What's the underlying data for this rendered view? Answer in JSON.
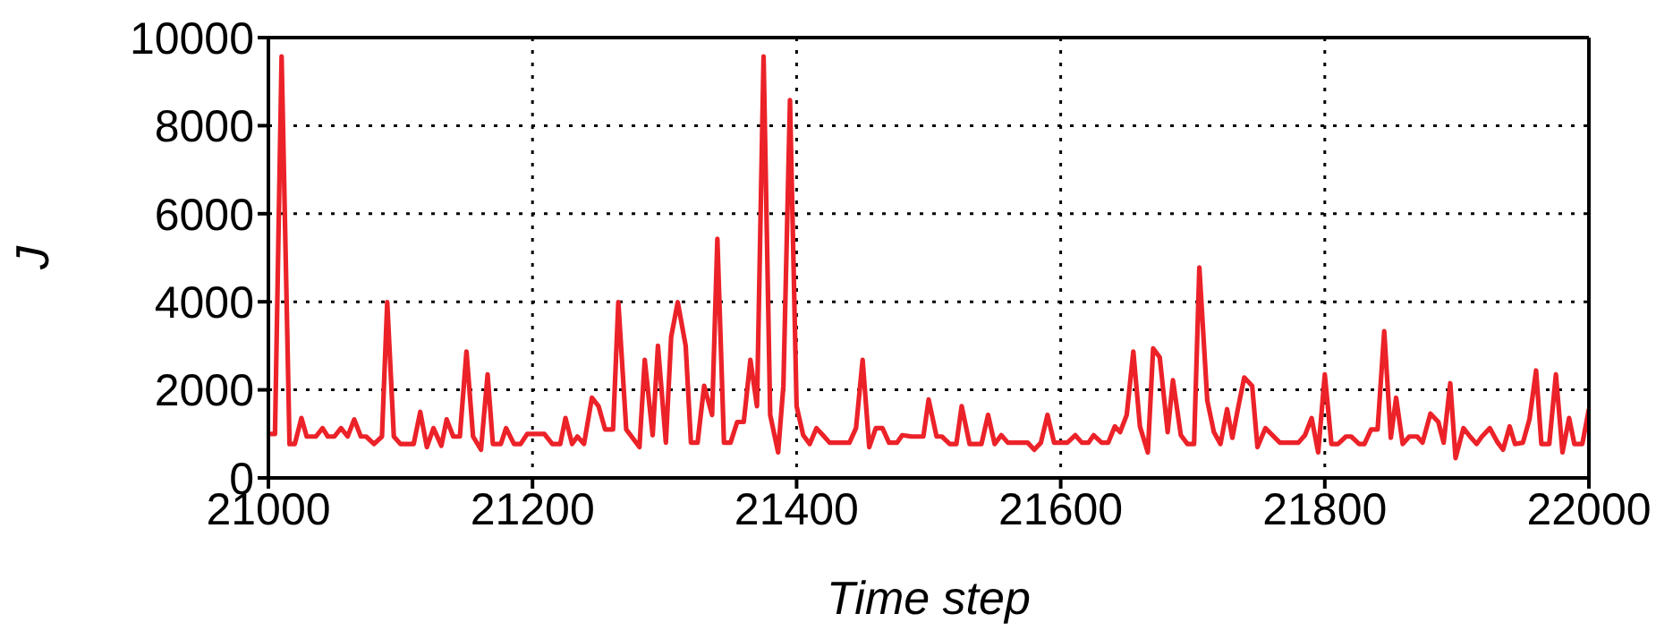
{
  "chart_data": {
    "type": "line",
    "xlabel": "Time step",
    "ylabel": "J",
    "xlim": [
      21000,
      22000
    ],
    "xticks": [
      21000,
      21200,
      21400,
      21600,
      21800,
      22000
    ],
    "ylim": [
      0,
      10000
    ],
    "yticks": [
      0,
      2000,
      4000,
      6000,
      8000,
      10000
    ],
    "grid": true,
    "legend": false,
    "marker": "none",
    "line_style": "solid",
    "series": [
      {
        "color": "#ec2229",
        "x": [
          21000,
          21005,
          21010,
          21016,
          21020,
          21025,
          21029,
          21036,
          21041,
          21045,
          21050,
          21055,
          21060,
          21065,
          21070,
          21074,
          21080,
          21086,
          21090,
          21095,
          21100,
          21110,
          21115,
          21120,
          21125,
          21131,
          21135,
          21140,
          21145,
          21150,
          21155,
          21161,
          21166,
          21170,
          21176,
          21180,
          21186,
          21191,
          21196,
          21209,
          21215,
          21221,
          21225,
          21230,
          21234,
          21239,
          21245,
          21250,
          21255,
          21261,
          21265,
          21271,
          21281,
          21285,
          21291,
          21295,
          21301,
          21305,
          21310,
          21316,
          21320,
          21325,
          21330,
          21336,
          21340,
          21345,
          21350,
          21355,
          21360,
          21365,
          21370,
          21375,
          21380,
          21386,
          21390,
          21395,
          21400,
          21405,
          21410,
          21415,
          21420,
          21425,
          21440,
          21445,
          21450,
          21455,
          21460,
          21465,
          21470,
          21476,
          21480,
          21487,
          21496,
          21500,
          21506,
          21510,
          21516,
          21521,
          21525,
          21531,
          21540,
          21545,
          21550,
          21555,
          21560,
          21575,
          21580,
          21585,
          21590,
          21595,
          21605,
          21611,
          21616,
          21621,
          21625,
          21631,
          21636,
          21641,
          21645,
          21650,
          21655,
          21660,
          21666,
          21670,
          21675,
          21681,
          21685,
          21691,
          21696,
          21701,
          21705,
          21711,
          21716,
          21721,
          21726,
          21730,
          21735,
          21739,
          21745,
          21749,
          21755,
          21766,
          21780,
          21785,
          21790,
          21795,
          21800,
          21805,
          21810,
          21816,
          21820,
          21826,
          21830,
          21835,
          21840,
          21845,
          21850,
          21854,
          21859,
          21864,
          21870,
          21874,
          21880,
          21886,
          21890,
          21895,
          21899,
          21905,
          21910,
          21915,
          21919,
          21925,
          21931,
          21935,
          21940,
          21944,
          21950,
          21955,
          21960,
          21964,
          21970,
          21975,
          21980,
          21985,
          21989,
          21995,
          22000
        ],
        "values": [
          1000,
          1000,
          9570,
          770,
          770,
          1360,
          940,
          940,
          1130,
          940,
          940,
          1130,
          940,
          1330,
          940,
          940,
          770,
          940,
          3990,
          940,
          770,
          770,
          1500,
          700,
          1130,
          730,
          1330,
          940,
          940,
          2870,
          940,
          640,
          2350,
          770,
          770,
          1130,
          770,
          770,
          1000,
          1000,
          770,
          770,
          1360,
          770,
          940,
          770,
          1820,
          1630,
          1100,
          1100,
          3990,
          1100,
          700,
          2680,
          970,
          3000,
          800,
          3200,
          3990,
          3000,
          800,
          800,
          2090,
          1430,
          5430,
          800,
          800,
          1270,
          1270,
          2680,
          1630,
          9570,
          1430,
          580,
          2090,
          8580,
          1630,
          970,
          770,
          1130,
          970,
          800,
          800,
          1130,
          2680,
          700,
          1130,
          1130,
          800,
          800,
          970,
          940,
          940,
          1780,
          940,
          940,
          770,
          770,
          1630,
          770,
          770,
          1430,
          770,
          970,
          800,
          800,
          640,
          800,
          1430,
          800,
          800,
          970,
          800,
          800,
          970,
          800,
          800,
          1170,
          1040,
          1430,
          2870,
          1170,
          580,
          2940,
          2740,
          1040,
          2220,
          970,
          770,
          770,
          4780,
          1760,
          1040,
          770,
          1560,
          910,
          1690,
          2280,
          2090,
          700,
          1130,
          800,
          800,
          970,
          1360,
          580,
          2350,
          770,
          770,
          940,
          940,
          770,
          770,
          1100,
          1100,
          3330,
          910,
          1820,
          770,
          940,
          940,
          800,
          1460,
          1270,
          800,
          2150,
          450,
          1130,
          940,
          770,
          940,
          1130,
          800,
          640,
          1170,
          770,
          800,
          1330,
          2440,
          770,
          770,
          2350,
          580,
          1360,
          770,
          770,
          1560
        ]
      }
    ]
  }
}
